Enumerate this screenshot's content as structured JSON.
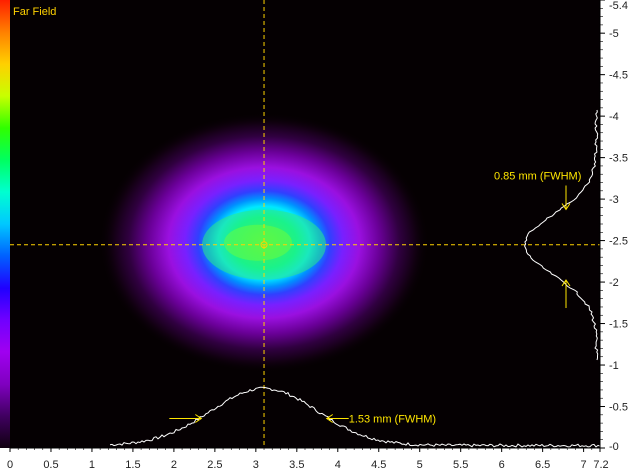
{
  "title": "Far Field",
  "colorbar": {
    "stops": [
      "#ff2000",
      "#ff8000",
      "#ffd000",
      "#c8ff00",
      "#30ff00",
      "#00ff60",
      "#00ffd0",
      "#00c8ff",
      "#0060ff",
      "#2000ff",
      "#7000ff",
      "#a000f0",
      "#8000c0",
      "#400060",
      "#100010"
    ]
  },
  "colors": {
    "crosshair": "#ffd200",
    "annotation": "#ffe600",
    "profile": "#ffffff",
    "background": "#050002"
  },
  "chart_data": {
    "type": "heatmap",
    "xlim": [
      0,
      7.2
    ],
    "ylim": [
      0,
      5.4
    ],
    "xticks": [
      "0",
      "0.5",
      "1",
      "1.5",
      "2",
      "2.5",
      "3",
      "3.5",
      "4",
      "4.5",
      "5",
      "5.5",
      "6",
      "6.5",
      "7",
      "7.2"
    ],
    "xtick_values": [
      0,
      0.5,
      1,
      1.5,
      2,
      2.5,
      3,
      3.5,
      4,
      4.5,
      5,
      5.5,
      6,
      6.5,
      7,
      7.2
    ],
    "yticks": [
      "0",
      "0.5",
      "1",
      "1.5",
      "2",
      "2.5",
      "3",
      "3.5",
      "4",
      "4.5",
      "5",
      "5.4"
    ],
    "ytick_values": [
      0,
      0.5,
      1,
      1.5,
      2,
      2.5,
      3,
      3.5,
      4,
      4.5,
      5,
      5.4
    ],
    "beam_center": {
      "x": 3.1,
      "y": 2.45
    },
    "horizontal_fwhm_label": "1.53 mm (FWHM)",
    "vertical_fwhm_label": "0.85 mm (FWHM)",
    "horizontal_fwhm_mm": 1.53,
    "vertical_fwhm_mm": 0.85
  }
}
